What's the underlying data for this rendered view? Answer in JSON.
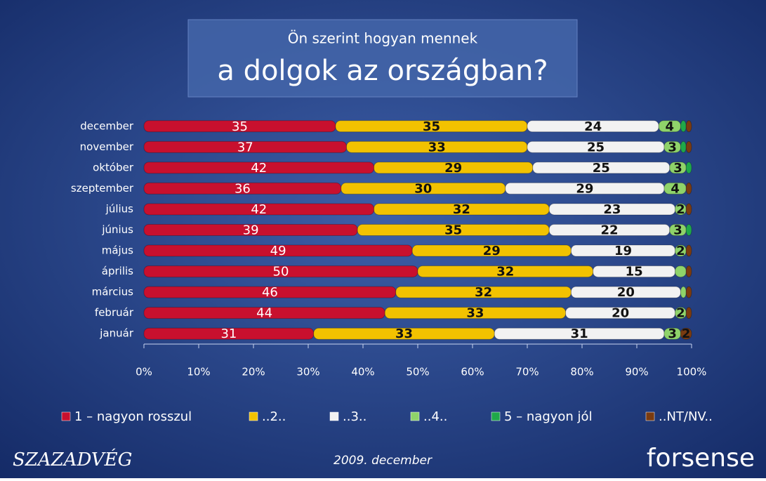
{
  "chart_data": {
    "type": "bar",
    "orientation": "horizontal",
    "stacked": true,
    "title": "Ön szerint hogyan mennek",
    "subtitle": "a dolgok az országban?",
    "categories": [
      "december",
      "november",
      "október",
      "szeptember",
      "július",
      "június",
      "május",
      "április",
      "március",
      "február",
      "január"
    ],
    "series": [
      {
        "name": "1 – nagyon rosszul",
        "color": "#c8102e",
        "values": [
          35,
          37,
          42,
          36,
          42,
          39,
          49,
          50,
          46,
          44,
          31
        ]
      },
      {
        "name": "..2..",
        "color": "#f2c200",
        "values": [
          35,
          33,
          29,
          30,
          32,
          35,
          29,
          32,
          32,
          33,
          33
        ]
      },
      {
        "name": "..3..",
        "color": "#f2f2f2",
        "values": [
          24,
          25,
          25,
          29,
          23,
          22,
          19,
          15,
          20,
          20,
          31
        ]
      },
      {
        "name": "..4..",
        "color": "#8fd36a",
        "values": [
          4,
          3,
          3,
          4,
          2,
          3,
          2,
          2,
          1,
          2,
          3
        ],
        "value_labels": [
          "4",
          "3",
          "3",
          "4",
          "2",
          "3",
          "2",
          null,
          null,
          "2",
          "3"
        ]
      },
      {
        "name": "5 – nagyon jól",
        "color": "#1fa84a",
        "values": [
          1,
          1,
          1,
          0,
          0,
          1,
          0,
          0,
          0,
          0,
          0
        ],
        "value_labels": [
          null,
          null,
          null,
          null,
          null,
          null,
          null,
          null,
          null,
          null,
          null
        ]
      },
      {
        "name": "..NT/NV..",
        "color": "#7a3b10",
        "values": [
          1,
          1,
          0,
          1,
          1,
          0,
          1,
          1,
          1,
          1,
          2
        ],
        "value_labels": [
          null,
          null,
          null,
          null,
          null,
          null,
          null,
          null,
          null,
          null,
          "2"
        ]
      }
    ],
    "xlim": [
      0,
      100
    ],
    "xticks": [
      {
        "value": 0,
        "label": "0%"
      },
      {
        "value": 10,
        "label": "10%"
      },
      {
        "value": 20,
        "label": "20%"
      },
      {
        "value": 30,
        "label": "30%"
      },
      {
        "value": 40,
        "label": "40%"
      },
      {
        "value": 50,
        "label": "50%"
      },
      {
        "value": 60,
        "label": "60%"
      },
      {
        "value": 70,
        "label": "70%"
      },
      {
        "value": 80,
        "label": "80%"
      },
      {
        "value": 90,
        "label": "90%"
      },
      {
        "value": 100,
        "label": "100%"
      }
    ],
    "legend": "bottom"
  },
  "footer": {
    "date": "2009. december",
    "logo_left": "SZAZADVÉG",
    "logo_right": "forsense"
  }
}
